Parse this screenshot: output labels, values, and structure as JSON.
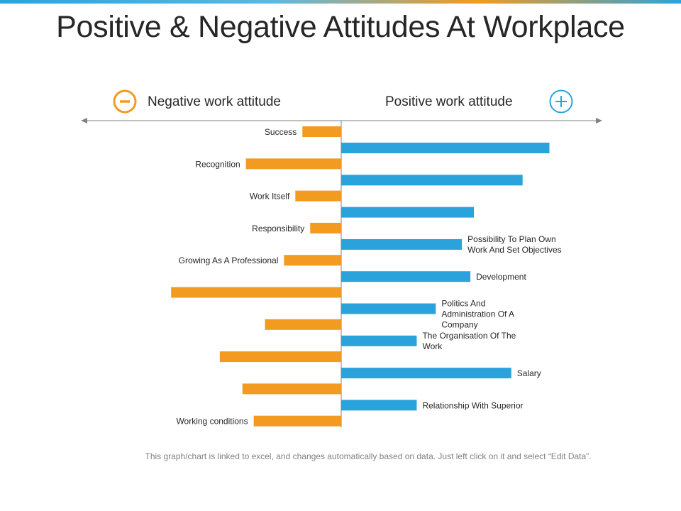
{
  "title": "Positive & Negative Attitudes At Workplace",
  "negative_label": "Negative work attitude",
  "positive_label": "Positive work attitude",
  "footer": "This graph/chart is linked to excel, and changes automatically based on data. Just left click on it and select “Edit Data”.",
  "colors": {
    "negative": "#f39a21",
    "positive": "#2aa3dc",
    "axis": "#808080",
    "text": "#262626"
  },
  "icons": {
    "negative": "minus-circle-icon",
    "positive": "plus-circle-icon"
  },
  "chart_data": {
    "type": "bar",
    "orientation": "horizontal-diverging",
    "series": [
      {
        "name": "Negative work attitude",
        "labels": [
          "Success",
          "Recognition",
          "Work Itself",
          "Responsibility",
          "Growing As A Professional",
          "",
          "",
          "",
          "",
          "Working conditions"
        ],
        "values": [
          -0.55,
          -1.35,
          -0.65,
          -0.44,
          -0.81,
          -2.41,
          -1.08,
          -1.72,
          -1.4,
          -1.24
        ]
      },
      {
        "name": "Positive work attitude",
        "labels": [
          "",
          "",
          "",
          "Possibility To Plan Own Work And Set Objectives",
          "Development",
          "Politics And Administration Of A Company",
          "The Organisation Of The Work",
          "Salary",
          "Relationship With Superior"
        ],
        "values": [
          2.95,
          2.57,
          1.88,
          1.71,
          1.83,
          1.34,
          1.07,
          2.41,
          1.07
        ]
      }
    ],
    "grid": false,
    "legend": "top"
  }
}
